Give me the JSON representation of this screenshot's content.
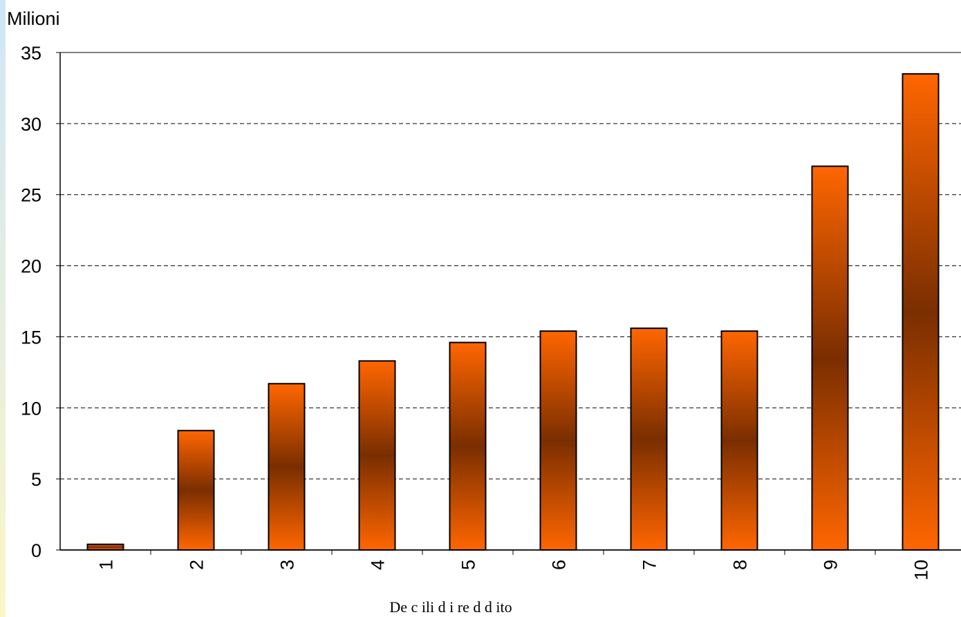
{
  "chart_data": {
    "type": "bar",
    "y_label": "Milioni",
    "x_label": "De c ili d i re d d ito",
    "categories": [
      "1",
      "2",
      "3",
      "4",
      "5",
      "6",
      "7",
      "8",
      "9",
      "10"
    ],
    "values": [
      0.4,
      8.4,
      11.7,
      13.3,
      14.6,
      15.4,
      15.6,
      15.4,
      27.0,
      33.5
    ],
    "color": "#ff6600",
    "ylim": [
      0,
      35
    ],
    "yticks": [
      0,
      5,
      10,
      15,
      20,
      25,
      30,
      35
    ],
    "grid": true
  }
}
